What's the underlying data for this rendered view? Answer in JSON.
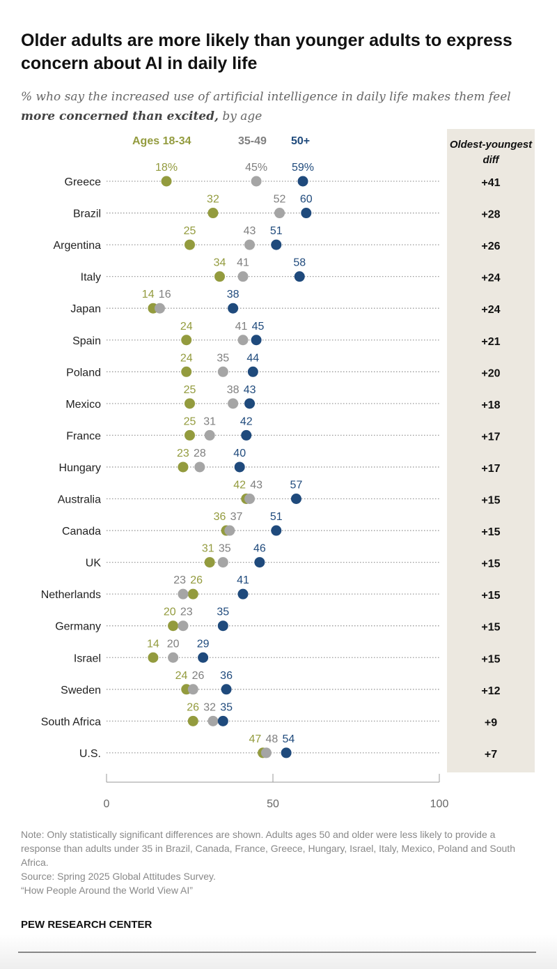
{
  "title": "Older adults are more likely than younger adults to express concern about AI in daily life",
  "subtitle_pre": "% who say the increased use of artificial intelligence in daily life makes them feel ",
  "subtitle_bold": "more concerned than excited,",
  "subtitle_post": " by age",
  "diff_header": "Oldest-youngest diff",
  "colors": {
    "young": "#939b3e",
    "middle": "#a5a5a5",
    "middle_text": "#7f7f7f",
    "old": "#1f4a7c",
    "panel": "#ece8e0"
  },
  "chart_data": {
    "type": "dot",
    "xlim": [
      0,
      100
    ],
    "xticks": [
      0,
      50,
      100
    ],
    "categories": [
      "Greece",
      "Brazil",
      "Argentina",
      "Italy",
      "Japan",
      "Spain",
      "Poland",
      "Mexico",
      "France",
      "Hungary",
      "Australia",
      "Canada",
      "UK",
      "Netherlands",
      "Germany",
      "Israel",
      "Sweden",
      "South Africa",
      "U.S."
    ],
    "series": [
      {
        "name": "Ages 18-34",
        "values": [
          18,
          32,
          25,
          34,
          14,
          24,
          24,
          25,
          25,
          23,
          42,
          36,
          31,
          26,
          20,
          14,
          24,
          26,
          47
        ]
      },
      {
        "name": "35-49",
        "values": [
          45,
          52,
          43,
          41,
          16,
          41,
          35,
          38,
          31,
          28,
          43,
          37,
          35,
          23,
          23,
          20,
          26,
          32,
          48
        ]
      },
      {
        "name": "50+",
        "values": [
          59,
          60,
          51,
          58,
          38,
          45,
          44,
          43,
          42,
          40,
          57,
          51,
          46,
          41,
          35,
          29,
          36,
          35,
          54
        ]
      }
    ],
    "diff": [
      "+41",
      "+28",
      "+26",
      "+24",
      "+24",
      "+21",
      "+20",
      "+18",
      "+17",
      "+17",
      "+15",
      "+15",
      "+15",
      "+15",
      "+15",
      "+15",
      "+12",
      "+9",
      "+7"
    ],
    "first_row_suffix": "%"
  },
  "notes": [
    "Note: Only statistically significant differences are shown. Adults ages 50 and older were less likely to provide a response than adults under 35 in Brazil, Canada, France, Greece, Hungary, Israel, Italy, Mexico, Poland and South Africa.",
    "Source: Spring 2025 Global Attitudes Survey.",
    "“How People Around the World View AI”"
  ],
  "brand": "PEW RESEARCH CENTER"
}
